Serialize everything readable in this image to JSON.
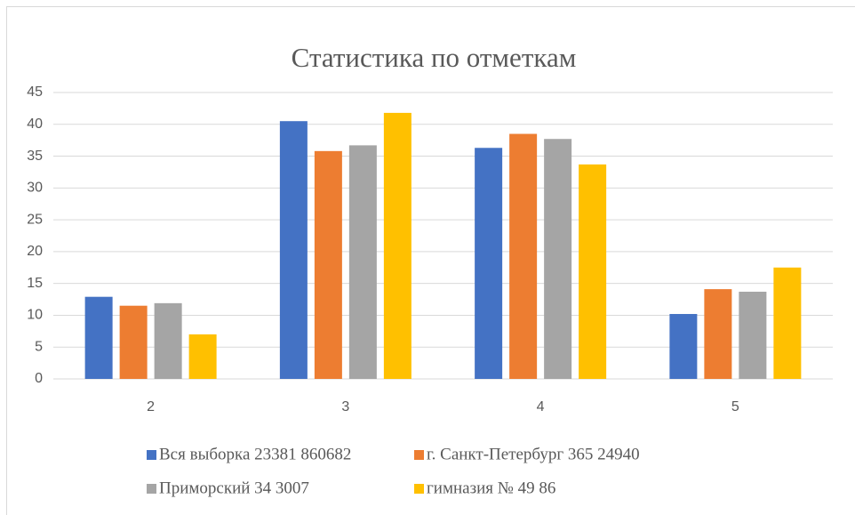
{
  "chart_data": {
    "type": "bar",
    "title": "Статистика по отметкам",
    "categories": [
      "2",
      "3",
      "4",
      "5"
    ],
    "series": [
      {
        "name": "Вся выборка 23381 860682",
        "color": "#4472c4",
        "values": [
          12.9,
          40.5,
          36.3,
          10.2
        ]
      },
      {
        "name": "г. Санкт-Петербург 365 24940",
        "color": "#ed7d31",
        "values": [
          11.5,
          35.8,
          38.5,
          14.1
        ]
      },
      {
        "name": "Приморский 34 3007",
        "color": "#a5a5a5",
        "values": [
          11.9,
          36.7,
          37.7,
          13.7
        ]
      },
      {
        "name": "гимназия № 49 86",
        "color": "#ffc000",
        "values": [
          7.0,
          41.8,
          33.7,
          17.5
        ]
      }
    ],
    "ylim": [
      0,
      45
    ],
    "yticks": [
      0,
      5,
      10,
      15,
      20,
      25,
      30,
      35,
      40,
      45
    ],
    "grid": true,
    "legend": "bottom"
  }
}
